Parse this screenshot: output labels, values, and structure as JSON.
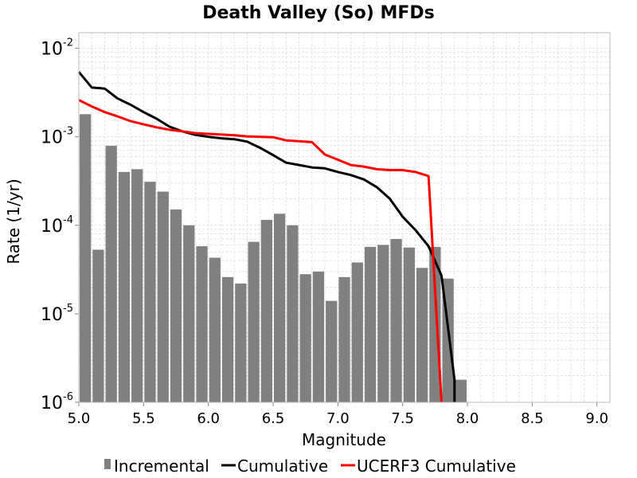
{
  "chart_data": {
    "type": "bar+line",
    "title": "Death Valley (So) MFDs",
    "xlabel": "Magnitude",
    "ylabel": "Rate (1/yr)",
    "xlim": [
      5.0,
      9.1
    ],
    "ylim": [
      1e-06,
      0.015
    ],
    "yscale": "log",
    "grid": true,
    "legend_position": "bottom",
    "x_ticks": [
      "5.0",
      "5.5",
      "6.0",
      "6.5",
      "7.0",
      "7.5",
      "8.0",
      "8.5",
      "9.0"
    ],
    "x_tick_values": [
      5.0,
      5.5,
      6.0,
      6.5,
      7.0,
      7.5,
      8.0,
      8.5,
      9.0
    ],
    "y_ticks": [
      {
        "value": 1e-06,
        "base": "10",
        "exp": "-6"
      },
      {
        "value": 1e-05,
        "base": "10",
        "exp": "-5"
      },
      {
        "value": 0.0001,
        "base": "10",
        "exp": "-4"
      },
      {
        "value": 0.001,
        "base": "10",
        "exp": "-3"
      },
      {
        "value": 0.01,
        "base": "10",
        "exp": "-2"
      }
    ],
    "series": [
      {
        "name": "Incremental",
        "type": "bar",
        "color": "#808080",
        "bar_width": 0.1,
        "x": [
          5.05,
          5.15,
          5.25,
          5.35,
          5.45,
          5.55,
          5.65,
          5.75,
          5.85,
          5.95,
          6.05,
          6.15,
          6.25,
          6.35,
          6.45,
          6.55,
          6.65,
          6.75,
          6.85,
          6.95,
          7.05,
          7.15,
          7.25,
          7.35,
          7.45,
          7.55,
          7.65,
          7.75,
          7.85,
          7.95
        ],
        "values": [
          0.0018,
          5.3e-05,
          0.00079,
          0.0004,
          0.00043,
          0.00031,
          0.00024,
          0.000151,
          0.0001,
          5.8e-05,
          4.3e-05,
          2.6e-05,
          2.2e-05,
          6.5e-05,
          0.000115,
          0.000135,
          0.0001,
          2.8e-05,
          3e-05,
          1.4e-05,
          2.6e-05,
          3.8e-05,
          5.7e-05,
          6e-05,
          7e-05,
          5.6e-05,
          3.3e-05,
          5.7e-05,
          2.5e-05,
          1.8e-06
        ]
      },
      {
        "name": "Cumulative",
        "type": "line",
        "color": "#000000",
        "x": [
          5.0,
          5.1,
          5.2,
          5.3,
          5.4,
          5.5,
          5.6,
          5.7,
          5.8,
          5.9,
          6.0,
          6.1,
          6.2,
          6.3,
          6.4,
          6.5,
          6.6,
          6.7,
          6.8,
          6.9,
          7.0,
          7.1,
          7.2,
          7.3,
          7.4,
          7.5,
          7.6,
          7.7,
          7.8,
          7.9,
          7.9
        ],
        "values": [
          0.0054,
          0.0036,
          0.0035,
          0.0027,
          0.0023,
          0.0019,
          0.0016,
          0.0013,
          0.00115,
          0.00105,
          0.001,
          0.00096,
          0.00094,
          0.00088,
          0.00075,
          0.00062,
          0.00051,
          0.00048,
          0.00045,
          0.00044,
          0.0004,
          0.00037,
          0.00033,
          0.00027,
          0.0002,
          0.000125,
          8.8e-05,
          5.8e-05,
          2.7e-05,
          1.8e-06,
          1e-06
        ]
      },
      {
        "name": "UCERF3 Cumulative",
        "type": "line",
        "color": "#ff0000",
        "x": [
          5.0,
          5.1,
          5.2,
          5.3,
          5.4,
          5.5,
          5.6,
          5.7,
          5.8,
          5.9,
          6.0,
          6.1,
          6.2,
          6.3,
          6.4,
          6.5,
          6.6,
          6.7,
          6.8,
          6.9,
          7.0,
          7.1,
          7.2,
          7.3,
          7.4,
          7.5,
          7.6,
          7.7,
          7.8
        ],
        "values": [
          0.0026,
          0.0022,
          0.0019,
          0.0017,
          0.0015,
          0.00138,
          0.00128,
          0.0012,
          0.00115,
          0.0011,
          0.00108,
          0.00106,
          0.00104,
          0.00101,
          0.001,
          0.00099,
          0.00091,
          0.00089,
          0.00087,
          0.00063,
          0.00055,
          0.00048,
          0.00046,
          0.00043,
          0.00042,
          0.00042,
          0.0004,
          0.00036,
          1e-06
        ]
      }
    ]
  }
}
